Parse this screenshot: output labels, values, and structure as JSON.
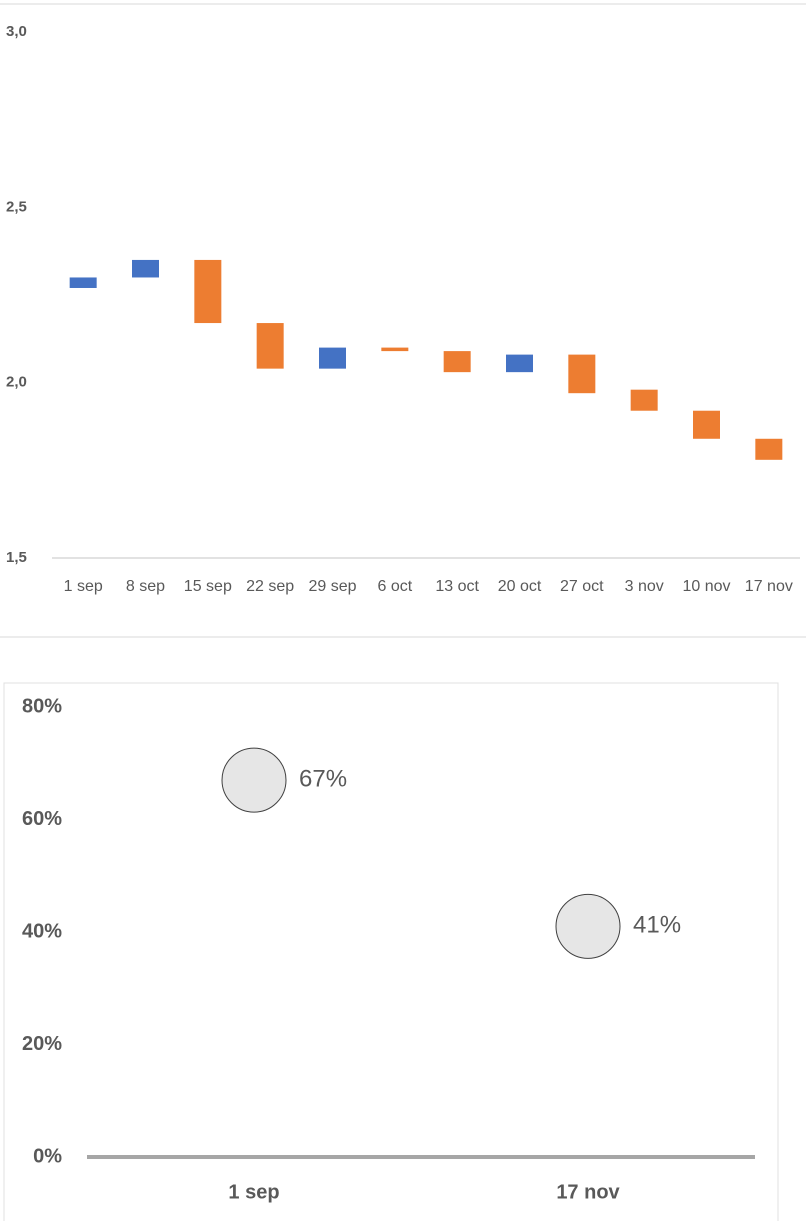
{
  "charts": [
    {
      "chart_data": {
        "type": "floating_bar",
        "categories": [
          "1 sep",
          "8 sep",
          "15 sep",
          "22 sep",
          "29 sep",
          "6 oct",
          "13 oct",
          "20 oct",
          "27 oct",
          "3 nov",
          "10 nov",
          "17 nov"
        ],
        "open": [
          2.27,
          2.3,
          2.35,
          2.17,
          2.04,
          2.1,
          2.09,
          2.03,
          2.08,
          1.98,
          1.92,
          1.84
        ],
        "close": [
          2.3,
          2.35,
          2.17,
          2.04,
          2.1,
          2.09,
          2.03,
          2.08,
          1.97,
          1.92,
          1.84,
          1.78
        ],
        "up_color": "#4472c4",
        "down_color": "#ed7d31",
        "ylim": [
          1.5,
          3.0
        ],
        "yticks": [
          {
            "value": 3.0,
            "label": "3,0"
          },
          {
            "value": 2.5,
            "label": "2,5"
          },
          {
            "value": 2.0,
            "label": "2,0"
          },
          {
            "value": 1.5,
            "label": "1,5"
          }
        ],
        "grid": false
      }
    },
    {
      "chart_data": {
        "type": "bubble",
        "categories": [
          "1 sep",
          "17 nov"
        ],
        "values": [
          67,
          41
        ],
        "value_labels": [
          "67%",
          "41%"
        ],
        "color": "#e6e6e6",
        "ylim": [
          0,
          80
        ],
        "yticks": [
          {
            "value": 0,
            "label": "0%"
          },
          {
            "value": 20,
            "label": "20%"
          },
          {
            "value": 40,
            "label": "40%"
          },
          {
            "value": 60,
            "label": "60%"
          },
          {
            "value": 80,
            "label": "80%"
          }
        ],
        "grid": false
      }
    }
  ]
}
